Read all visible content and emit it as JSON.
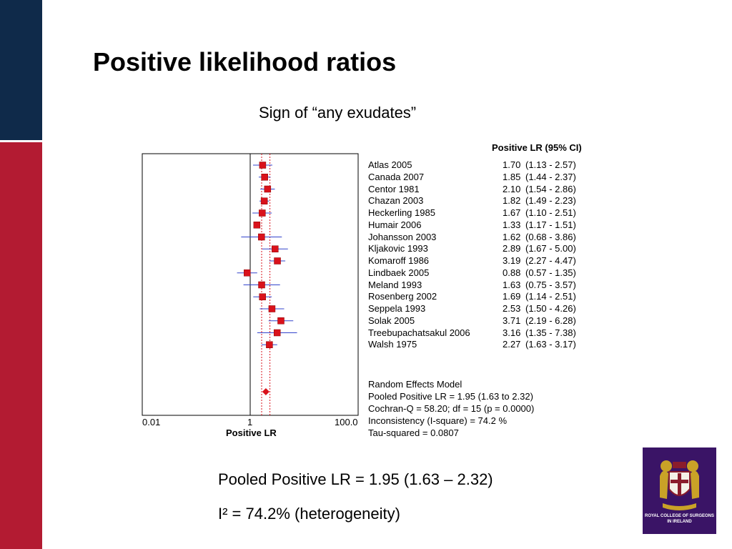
{
  "slide": {
    "title": "Positive likelihood ratios",
    "subtitle": "Sign of “any exudates”",
    "pooled_text": "Pooled Positive LR = 1.95 (1.63 – 2.32)",
    "isq_text": "I² = 74.2% (heterogeneity)",
    "logo_text_line1": "ROYAL COLLEGE OF SURGEONS",
    "logo_text_line2": "IN IRELAND",
    "colors": {
      "navy": "#0f2a4a",
      "red_band": "#b31b32",
      "marker": "#d9121b",
      "ci_line": "#3344cc",
      "logo": "#3a1466"
    }
  },
  "chart_data": {
    "type": "forest",
    "column_header": "Positive LR (95% CI)",
    "xlabel": "Positive LR",
    "x_scale": "log",
    "xlim": [
      0.01,
      100
    ],
    "x_tick_labels": [
      "0.01",
      "1",
      "100.0"
    ],
    "studies": [
      {
        "name": "Atlas 2005",
        "lr": 1.7,
        "lr_text": "1.70",
        "lo": 1.13,
        "hi": 2.57,
        "ci_text": "(1.13 - 2.57)"
      },
      {
        "name": "Canada 2007",
        "lr": 1.85,
        "lr_text": "1.85",
        "lo": 1.44,
        "hi": 2.37,
        "ci_text": "(1.44 - 2.37)"
      },
      {
        "name": "Centor 1981",
        "lr": 2.1,
        "lr_text": "2.10",
        "lo": 1.54,
        "hi": 2.86,
        "ci_text": "(1.54 - 2.86)"
      },
      {
        "name": "Chazan 2003",
        "lr": 1.82,
        "lr_text": "1.82",
        "lo": 1.49,
        "hi": 2.23,
        "ci_text": "(1.49 - 2.23)"
      },
      {
        "name": "Heckerling 1985",
        "lr": 1.67,
        "lr_text": "1.67",
        "lo": 1.1,
        "hi": 2.51,
        "ci_text": "(1.10 - 2.51)"
      },
      {
        "name": "Humair 2006",
        "lr": 1.33,
        "lr_text": "1.33",
        "lo": 1.17,
        "hi": 1.51,
        "ci_text": "(1.17 - 1.51)"
      },
      {
        "name": "Johansson 2003",
        "lr": 1.62,
        "lr_text": "1.62",
        "lo": 0.68,
        "hi": 3.86,
        "ci_text": "(0.68 - 3.86)"
      },
      {
        "name": "Kljakovic 1993",
        "lr": 2.89,
        "lr_text": "2.89",
        "lo": 1.67,
        "hi": 5.0,
        "ci_text": "(1.67 - 5.00)"
      },
      {
        "name": "Komaroff 1986",
        "lr": 3.19,
        "lr_text": "3.19",
        "lo": 2.27,
        "hi": 4.47,
        "ci_text": "(2.27 - 4.47)"
      },
      {
        "name": "Lindbaek 2005",
        "lr": 0.88,
        "lr_text": "0.88",
        "lo": 0.57,
        "hi": 1.35,
        "ci_text": "(0.57 - 1.35)"
      },
      {
        "name": "Meland 1993",
        "lr": 1.63,
        "lr_text": "1.63",
        "lo": 0.75,
        "hi": 3.57,
        "ci_text": "(0.75 - 3.57)"
      },
      {
        "name": "Rosenberg 2002",
        "lr": 1.69,
        "lr_text": "1.69",
        "lo": 1.14,
        "hi": 2.51,
        "ci_text": "(1.14 - 2.51)"
      },
      {
        "name": "Seppela 1993",
        "lr": 2.53,
        "lr_text": "2.53",
        "lo": 1.5,
        "hi": 4.26,
        "ci_text": "(1.50 - 4.26)"
      },
      {
        "name": "Solak 2005",
        "lr": 3.71,
        "lr_text": "3.71",
        "lo": 2.19,
        "hi": 6.28,
        "ci_text": "(2.19 - 6.28)"
      },
      {
        "name": "Treebupachatsakul 2006",
        "lr": 3.16,
        "lr_text": "3.16",
        "lo": 1.35,
        "hi": 7.38,
        "ci_text": "(1.35 - 7.38)"
      },
      {
        "name": "Walsh 1975",
        "lr": 2.27,
        "lr_text": "2.27",
        "lo": 1.63,
        "hi": 3.17,
        "ci_text": "(1.63 - 3.17)"
      }
    ],
    "pooled": {
      "lr": 1.95,
      "lo": 1.63,
      "hi": 2.32
    },
    "summary_lines": [
      "Random Effects Model",
      "Pooled Positive LR = 1.95 (1.63 to 2.32)",
      "Cochran-Q = 58.20; df =  15 (p = 0.0000)",
      "Inconsistency (I-square) = 74.2 %",
      "Tau-squared = 0.0807"
    ]
  }
}
